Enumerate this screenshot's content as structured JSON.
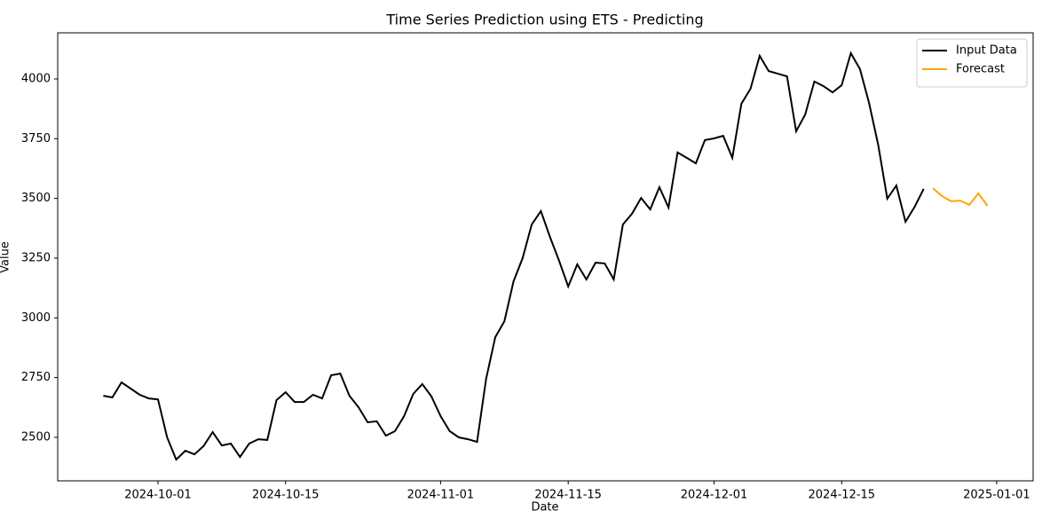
{
  "chart_data": {
    "type": "line",
    "title": "Time Series Prediction using ETS - Predicting",
    "xlabel": "Date",
    "ylabel": "Value",
    "xlim": [
      "2024-09-20",
      "2025-01-05"
    ],
    "ylim": [
      2318,
      4193
    ],
    "xticks": [
      "2024-10-01",
      "2024-10-15",
      "2024-11-01",
      "2024-11-15",
      "2024-12-01",
      "2024-12-15",
      "2025-01-01"
    ],
    "yticks": [
      2500,
      2750,
      3000,
      3250,
      3500,
      3750,
      4000
    ],
    "legend": "upper right",
    "series": [
      {
        "name": "Input Data",
        "color": "#000000",
        "x": [
          "2024-09-25",
          "2024-09-26",
          "2024-09-27",
          "2024-09-28",
          "2024-09-29",
          "2024-09-30",
          "2024-10-01",
          "2024-10-02",
          "2024-10-03",
          "2024-10-04",
          "2024-10-05",
          "2024-10-06",
          "2024-10-07",
          "2024-10-08",
          "2024-10-09",
          "2024-10-10",
          "2024-10-11",
          "2024-10-12",
          "2024-10-13",
          "2024-10-14",
          "2024-10-15",
          "2024-10-16",
          "2024-10-17",
          "2024-10-18",
          "2024-10-19",
          "2024-10-20",
          "2024-10-21",
          "2024-10-22",
          "2024-10-23",
          "2024-10-24",
          "2024-10-25",
          "2024-10-26",
          "2024-10-27",
          "2024-10-28",
          "2024-10-29",
          "2024-10-30",
          "2024-10-31",
          "2024-11-01",
          "2024-11-02",
          "2024-11-03",
          "2024-11-04",
          "2024-11-05",
          "2024-11-06",
          "2024-11-07",
          "2024-11-08",
          "2024-11-09",
          "2024-11-10",
          "2024-11-11",
          "2024-11-12",
          "2024-11-13",
          "2024-11-14",
          "2024-11-15",
          "2024-11-16",
          "2024-11-17",
          "2024-11-18",
          "2024-11-19",
          "2024-11-20",
          "2024-11-21",
          "2024-11-22",
          "2024-11-23",
          "2024-11-24",
          "2024-11-25",
          "2024-11-26",
          "2024-11-27",
          "2024-11-28",
          "2024-11-29",
          "2024-11-30",
          "2024-12-01",
          "2024-12-02",
          "2024-12-03",
          "2024-12-04",
          "2024-12-05",
          "2024-12-06",
          "2024-12-07",
          "2024-12-08",
          "2024-12-09",
          "2024-12-10",
          "2024-12-11",
          "2024-12-12",
          "2024-12-13",
          "2024-12-14",
          "2024-12-15",
          "2024-12-16",
          "2024-12-17",
          "2024-12-18",
          "2024-12-19",
          "2024-12-20",
          "2024-12-21",
          "2024-12-22",
          "2024-12-23",
          "2024-12-24"
        ],
        "values": [
          2674,
          2667,
          2730,
          2704,
          2678,
          2663,
          2659,
          2500,
          2407,
          2444,
          2429,
          2463,
          2522,
          2466,
          2474,
          2418,
          2474,
          2492,
          2489,
          2656,
          2689,
          2648,
          2648,
          2678,
          2663,
          2760,
          2767,
          2674,
          2626,
          2563,
          2567,
          2507,
          2526,
          2589,
          2682,
          2723,
          2671,
          2589,
          2526,
          2500,
          2492,
          2481,
          2745,
          2919,
          2986,
          3153,
          3250,
          3391,
          3447,
          3339,
          3239,
          3131,
          3224,
          3161,
          3231,
          3228,
          3161,
          3391,
          3436,
          3502,
          3454,
          3547,
          3462,
          3692,
          3670,
          3647,
          3744,
          3751,
          3762,
          3670,
          3896,
          3959,
          4097,
          4033,
          4022,
          4011,
          3781,
          3851,
          3989,
          3970,
          3944,
          3974,
          4108,
          4041,
          3900,
          3725,
          3499,
          3554,
          3402,
          3465,
          3540
        ]
      },
      {
        "name": "Forecast",
        "color": "#ffa500",
        "x": [
          "2024-12-25",
          "2024-12-26",
          "2024-12-27",
          "2024-12-28",
          "2024-12-29",
          "2024-12-30",
          "2024-12-31"
        ],
        "values": [
          3543,
          3510,
          3488,
          3491,
          3473,
          3521,
          3469
        ]
      }
    ]
  }
}
